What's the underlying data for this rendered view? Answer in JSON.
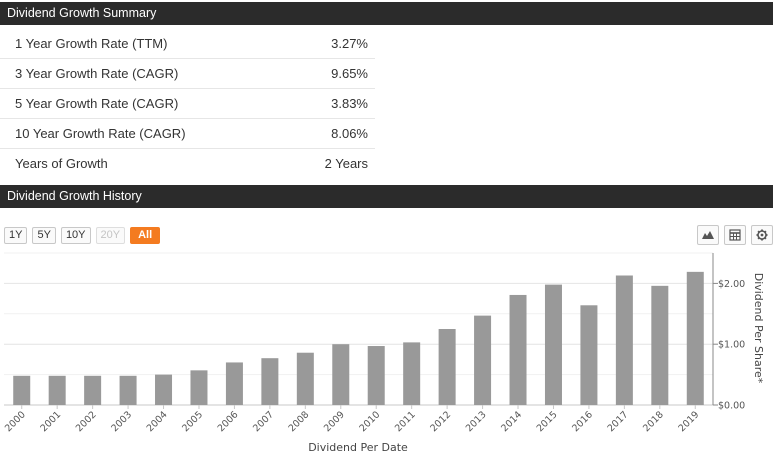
{
  "summary": {
    "header": "Dividend Growth Summary",
    "rows": [
      {
        "label": "1 Year Growth Rate (TTM)",
        "value": "3.27%"
      },
      {
        "label": "3 Year Growth Rate (CAGR)",
        "value": "9.65%"
      },
      {
        "label": "5 Year Growth Rate (CAGR)",
        "value": "3.83%"
      },
      {
        "label": "10 Year Growth Rate (CAGR)",
        "value": "8.06%"
      },
      {
        "label": "Years of Growth",
        "value": "2 Years"
      }
    ]
  },
  "history": {
    "header": "Dividend Growth History",
    "ranges": [
      {
        "label": "1Y",
        "state": "normal"
      },
      {
        "label": "5Y",
        "state": "normal"
      },
      {
        "label": "10Y",
        "state": "normal"
      },
      {
        "label": "20Y",
        "state": "disabled"
      },
      {
        "label": "All",
        "state": "active"
      }
    ],
    "tools": [
      "area-chart-icon",
      "table-icon",
      "gear-icon"
    ]
  },
  "colors": {
    "header_bg": "#2b2b2b",
    "accent": "#f47b20",
    "bar": "#999999"
  },
  "chart_data": {
    "type": "bar",
    "categories": [
      "2000",
      "2001",
      "2002",
      "2003",
      "2004",
      "2005",
      "2006",
      "2007",
      "2008",
      "2009",
      "2010",
      "2011",
      "2012",
      "2013",
      "2014",
      "2015",
      "2016",
      "2017",
      "2018",
      "2019"
    ],
    "series": [
      {
        "values": [
          0.48,
          0.48,
          0.48,
          0.48,
          0.5,
          0.57,
          0.7,
          0.77,
          0.86,
          1.0,
          0.97,
          1.03,
          1.25,
          1.47,
          1.81,
          1.98,
          1.64,
          2.13,
          1.96,
          2.19
        ]
      }
    ],
    "xlabel": "Dividend Per Date",
    "ylabel": "Dividend Per Share*",
    "yticks": [
      "$0.00",
      "$1.00",
      "$2.00"
    ],
    "ylim": [
      0,
      2.5
    ],
    "grid": true
  }
}
